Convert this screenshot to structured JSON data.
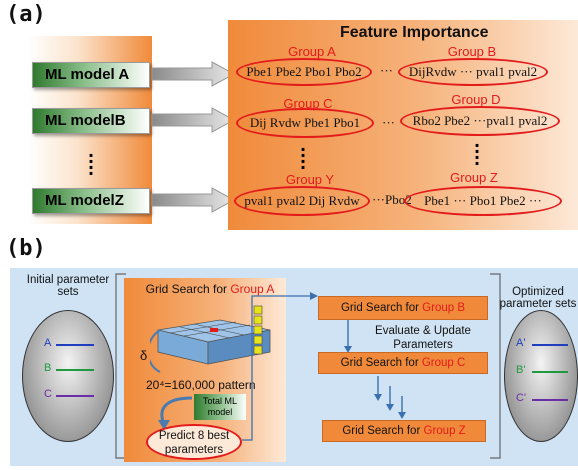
{
  "panel_a": {
    "label": "(a)",
    "title": "Feature Importance",
    "models": [
      "ML model A",
      "ML modelB",
      "ML modelZ"
    ],
    "groups": [
      {
        "name": "Group A",
        "content": "Pbe1 Pbe2 Pbo1 Pbo2"
      },
      {
        "name": "Group B",
        "content": "DijRvdw ··· pval1 pval2"
      },
      {
        "name": "Group C",
        "content": "Dij Rvdw Pbe1 Pbo1"
      },
      {
        "name": "Group D",
        "content": "Rbo2 Pbe2 ···pval1 pval2"
      },
      {
        "name": "Group Y",
        "content": "pval1 pval2 Dij Rvdw"
      },
      {
        "name": "Group Z",
        "content": "Pbe1 ··· Pbo1 Pbe2 ···"
      }
    ],
    "separator": "···"
  },
  "panel_b": {
    "label": "(b)",
    "initial_label": "Initial parameter sets",
    "optimized_label": "Optimized parameter sets",
    "initial_lines": [
      "A",
      "B",
      "C"
    ],
    "optimized_lines": [
      "A'",
      "B'",
      "C'"
    ],
    "grid_prefix": "Grid Search for",
    "grid_group_a": "Group A",
    "delta": "δ",
    "pattern": "20⁴=160,000 pattern",
    "total_model": "Total ML model",
    "predict": "Predict 8 best parameters",
    "grid_group_b": "Group B",
    "evaluate": "Evaluate & Update Parameters",
    "grid_group_c": "Group C",
    "grid_group_z": "Group Z"
  },
  "colors": {
    "accent_red": "#e31b1b",
    "orange": "#f08a3a",
    "model_green": "#2f7a2f",
    "line_a": "#1f3fbf",
    "line_b": "#1f9a3f",
    "line_c": "#6a2fa8"
  }
}
